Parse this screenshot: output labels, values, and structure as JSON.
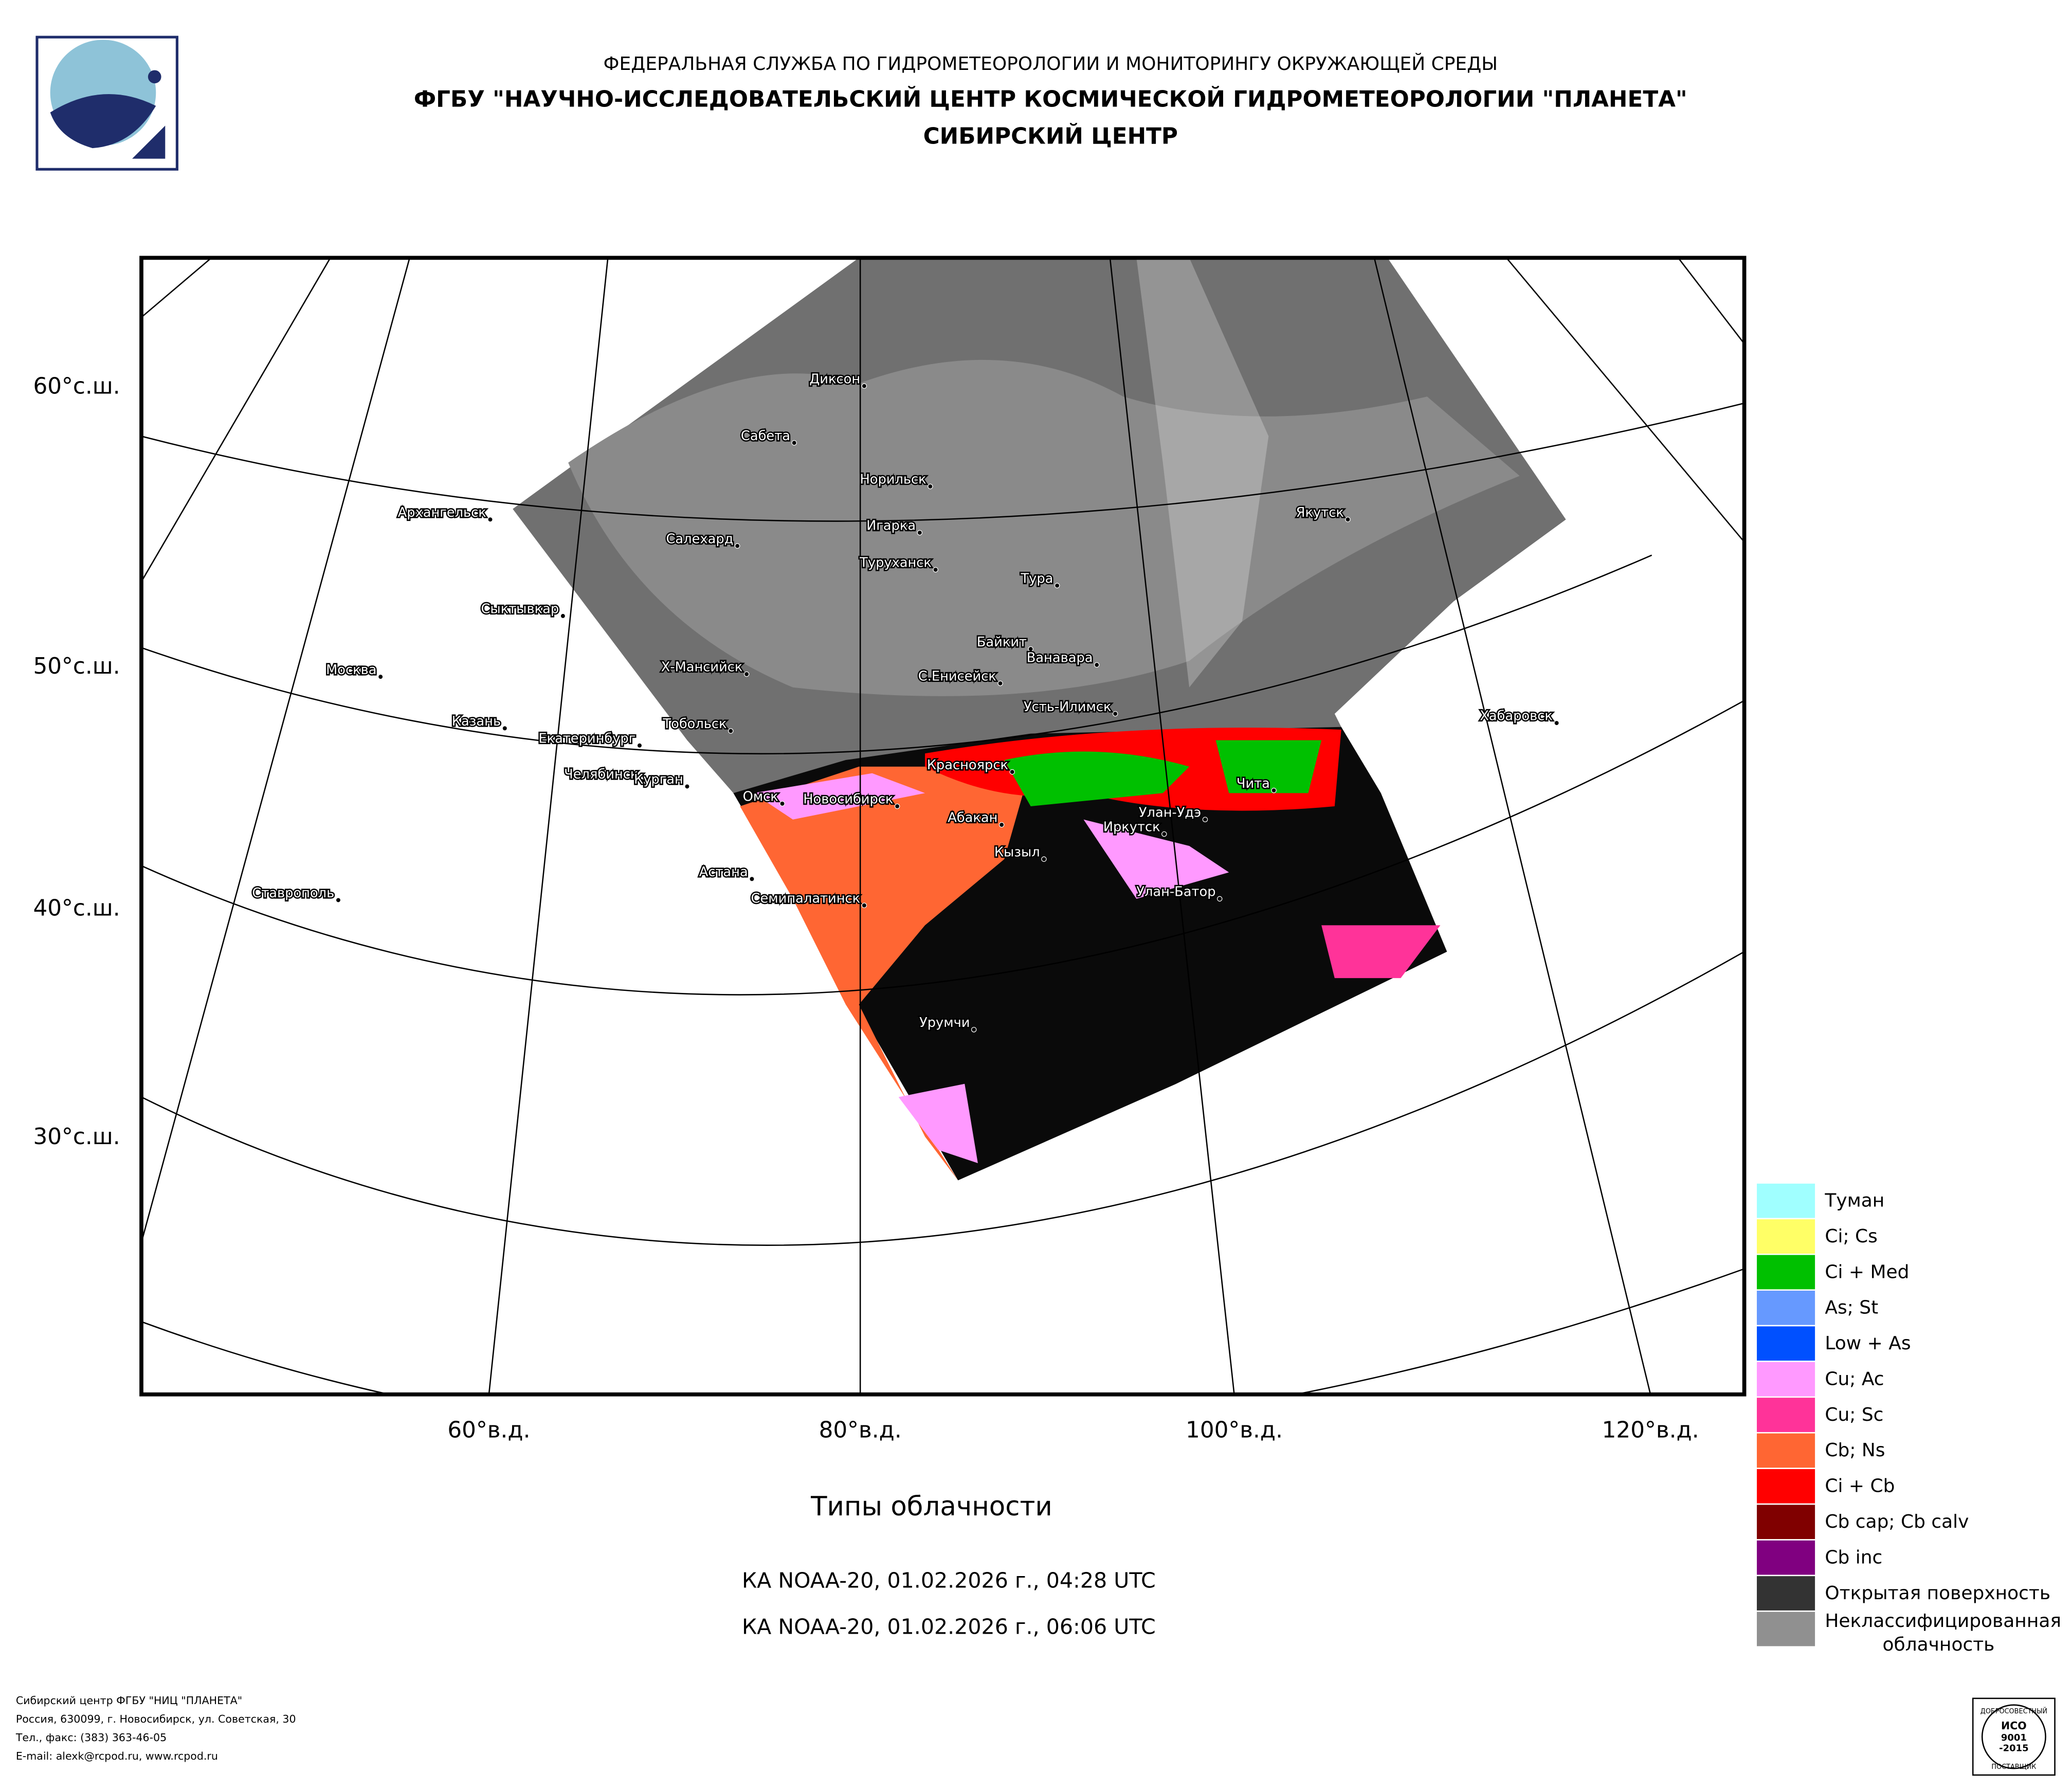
{
  "header": {
    "agency": "ФЕДЕРАЛЬНАЯ СЛУЖБА ПО ГИДРОМЕТЕОРОЛОГИИ И МОНИТОРИНГУ ОКРУЖАЮЩЕЙ СРЕДЫ",
    "institute": "ФГБУ \"НАУЧНО-ИССЛЕДОВАТЕЛЬСКИЙ ЦЕНТР КОСМИЧЕСКОЙ ГИДРОМЕТЕОРОЛОГИИ \"ПЛАНЕТА\"",
    "branch": "СИБИРСКИЙ ЦЕНТР"
  },
  "map": {
    "lat_labels": [
      "60°с.ш.",
      "50°с.ш.",
      "40°с.ш.",
      "30°с.ш."
    ],
    "lon_labels": [
      "60°в.д.",
      "80°в.д.",
      "100°в.д.",
      "120°в.д."
    ],
    "cities": [
      "Диксон",
      "Сабета",
      "Норильск",
      "Архангельск",
      "Якутск",
      "Салехард",
      "Игарка",
      "Туруханск",
      "Тура",
      "Сыктывкар",
      "Байкит",
      "Ванавара",
      "Москва",
      "Х-Мансийск",
      "С.Енисейск",
      "Усть-Илимск",
      "Хабаровск",
      "Казань",
      "Тобольск",
      "Екатеринбург",
      "Челябинск",
      "Курган",
      "Красноярск",
      "Чита",
      "Омск",
      "Новосибирск",
      "Улан-Удэ",
      "Абакан",
      "Иркутск",
      "Кызыл",
      "Астана",
      "Ставрополь",
      "Семипалатинск",
      "Улан-Батор",
      "Урумчи"
    ]
  },
  "caption": {
    "title": "Типы облачности",
    "passes": [
      "КА NOAA-20, 01.02.2026 г., 04:28 UTC",
      "КА NOAA-20, 01.02.2026 г., 06:06 UTC"
    ]
  },
  "legend": [
    {
      "name": "Туман",
      "color": "#a0ffff"
    },
    {
      "name": "Ci; Cs",
      "color": "#ffff66"
    },
    {
      "name": "Ci + Med",
      "color": "#00c000"
    },
    {
      "name": "As; St",
      "color": "#6699ff"
    },
    {
      "name": "Low + As",
      "color": "#0050ff"
    },
    {
      "name": "Cu; Ac",
      "color": "#ff99ff"
    },
    {
      "name": "Cu; Sc",
      "color": "#ff3399"
    },
    {
      "name": "Cb; Ns",
      "color": "#ff6633"
    },
    {
      "name": "Ci + Cb",
      "color": "#ff0000"
    },
    {
      "name": "Cb cap; Cb calv",
      "color": "#800000"
    },
    {
      "name": "Cb inc",
      "color": "#800080"
    },
    {
      "name": "Открытая поверхность",
      "color": "#333333"
    },
    {
      "name": "Неклассифицированная облачность",
      "color": "#909090"
    }
  ],
  "footer": [
    "Сибирский центр ФГБУ \"НИЦ \"ПЛАНЕТА\"",
    "Россия, 630099, г. Новосибирск, ул. Советская, 30",
    "Тел., факс: (383) 363-46-05",
    "E-mail: alexk@rcpod.ru, www.rcpod.ru"
  ],
  "badge": {
    "top": "ДОБРОСОВЕСТНЫЙ",
    "code": "ИСО",
    "number": "9001",
    "year": "-2015",
    "bottom": "ПОСТАВЩИК"
  }
}
